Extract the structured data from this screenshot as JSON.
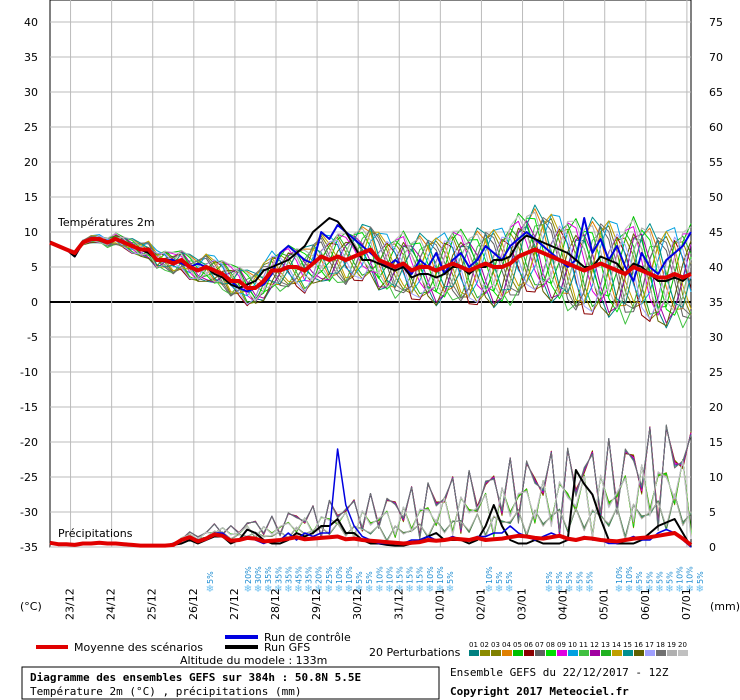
{
  "chart_data": {
    "type": "line",
    "title": "Diagramme des ensembles GEFS sur 384h : 50.8N 5.5E",
    "subtitle": "Température 2m (°C) , précipitations (mm)",
    "left_unit": "(°C)",
    "right_unit": "(mm)",
    "temp_label": "Températures 2m",
    "precip_label": "Précipitations",
    "left_axis": {
      "ticks": [
        "40",
        "35",
        "30",
        "25",
        "20",
        "15",
        "10",
        "5",
        "0",
        "-5",
        "-10",
        "-15",
        "-20",
        "-25",
        "-30",
        "-35"
      ],
      "ylim": [
        -35,
        40
      ]
    },
    "right_axis": {
      "ticks": [
        "75",
        "70",
        "65",
        "60",
        "55",
        "50",
        "45",
        "40",
        "35",
        "30",
        "25",
        "20",
        "15",
        "10",
        "5",
        "0"
      ]
    },
    "dates": [
      "23/12",
      "24/12",
      "25/12",
      "26/12",
      "27/12",
      "28/12",
      "29/12",
      "30/12",
      "31/12",
      "01/01",
      "02/01",
      "03/01",
      "04/01",
      "05/01",
      "06/01",
      "07/01"
    ],
    "snow_labels": [
      "5%",
      "20%",
      "30%",
      "35%",
      "35%",
      "35%",
      "45%",
      "35%",
      "20%",
      "25%",
      "10%",
      "10%",
      "5%",
      "5%",
      "10%",
      "10%",
      "15%",
      "15%",
      "15%",
      "10%",
      "10%",
      "5%",
      "10%",
      "5%",
      "5%",
      "5%",
      "5%",
      "5%",
      "5%",
      "5%",
      "10%",
      "10%",
      "5%",
      "5%",
      "5%",
      "5%",
      "10%",
      "10%",
      "5%"
    ],
    "temperature_series": [
      {
        "name": "Moyenne des scénarios",
        "color": "#e00000",
        "values": [
          8.5,
          8,
          7.5,
          7,
          8.5,
          9,
          9,
          8.5,
          9,
          8.5,
          8,
          7.5,
          7.5,
          6,
          6,
          5.5,
          6,
          5,
          4.5,
          5,
          4.5,
          4,
          3,
          3,
          2,
          2,
          3,
          4.5,
          4.5,
          5,
          5,
          4.5,
          5.5,
          6.5,
          6,
          6.5,
          6,
          6.5,
          7,
          7.5,
          6,
          5.5,
          5,
          5.5,
          4.5,
          5,
          5,
          4.5,
          5,
          5.5,
          5,
          4.5,
          5,
          5.5,
          5,
          5,
          5.5,
          6.5,
          7,
          7.5,
          7,
          6.5,
          6,
          5.5,
          5,
          4.5,
          5,
          5.5,
          5,
          4.5,
          4,
          5,
          4.5,
          4,
          3.5,
          3.5,
          4,
          3.5,
          4
        ]
      },
      {
        "name": "Run de contrôle",
        "color": "#0000e0",
        "values": [
          8.5,
          8,
          7.5,
          6.5,
          8.5,
          9,
          9,
          8.5,
          9,
          8.5,
          8,
          7.5,
          7,
          6,
          6,
          6,
          5.5,
          5,
          5.5,
          5,
          4.5,
          4,
          3,
          2,
          1.5,
          2,
          2.5,
          4,
          7,
          8,
          7,
          6,
          5.5,
          10,
          9,
          11,
          10,
          9,
          8,
          7,
          6,
          5,
          6,
          5,
          4,
          6,
          5,
          7,
          4,
          6,
          7,
          5,
          6,
          8,
          7,
          6,
          8,
          9,
          10,
          9,
          8,
          7,
          6,
          5,
          6,
          12,
          7,
          9,
          6,
          8,
          5,
          3,
          7,
          5,
          4,
          6,
          7,
          8,
          10
        ]
      },
      {
        "name": "Run GFS",
        "color": "#000000",
        "values": [
          8.5,
          8,
          7.5,
          6.5,
          8.5,
          9,
          9,
          8.5,
          9,
          8.5,
          8,
          7.5,
          7,
          6,
          6,
          5.5,
          6,
          5,
          4.5,
          5,
          4,
          3.5,
          2.5,
          2,
          2.5,
          3,
          4.5,
          5,
          5.5,
          6,
          7,
          8,
          10,
          11,
          12,
          11.5,
          10,
          8,
          6,
          6,
          5.5,
          5,
          4.5,
          5,
          3.5,
          4,
          4,
          3.5,
          4,
          5,
          5,
          4,
          5,
          5,
          6,
          6,
          6.5,
          8.5,
          9.5,
          9,
          8.5,
          8,
          7.5,
          7,
          6,
          5,
          5,
          6.5,
          6,
          5.5,
          4,
          5.5,
          5,
          4,
          3,
          3,
          3.5,
          3,
          4
        ]
      }
    ],
    "precip_series": [
      {
        "name": "Moyenne des scénarios",
        "color": "#e00000",
        "values": [
          0.6,
          0.4,
          0.4,
          0.3,
          0.5,
          0.5,
          0.6,
          0.5,
          0.5,
          0.4,
          0.3,
          0.2,
          0.2,
          0.2,
          0.2,
          0.3,
          1,
          1.4,
          0.8,
          1.2,
          1.8,
          1.6,
          0.9,
          1,
          1.3,
          1.2,
          0.8,
          0.9,
          1,
          1.2,
          1.4,
          1.1,
          1.2,
          1.3,
          1.4,
          1.5,
          1.1,
          1.2,
          1,
          0.9,
          0.8,
          0.7,
          0.6,
          0.5,
          0.6,
          0.7,
          1,
          0.9,
          1,
          1.2,
          1.1,
          1,
          1.3,
          1,
          1.1,
          1.2,
          1.4,
          1.6,
          1.5,
          1.3,
          1.2,
          1.4,
          1.6,
          1.2,
          1,
          1.3,
          1.2,
          1,
          0.9,
          0.8,
          1,
          1.2,
          1.3,
          1.4,
          1.6,
          1.8,
          2,
          1.2,
          0.3
        ]
      },
      {
        "name": "Run GFS",
        "color": "#000000",
        "values": [
          0.5,
          0.5,
          0.4,
          0.3,
          0.5,
          0.5,
          0.5,
          0.5,
          0.5,
          0.4,
          0.3,
          0.2,
          0.2,
          0.2,
          0.2,
          0.3,
          0.5,
          1,
          0.5,
          1,
          1.5,
          1.5,
          0.5,
          1,
          2.5,
          2,
          1,
          0.5,
          0.5,
          1,
          2,
          1.5,
          2,
          3,
          3,
          4,
          2,
          2,
          1,
          0.5,
          0.5,
          0.3,
          0.2,
          0.2,
          0.5,
          1,
          1.5,
          2,
          1,
          1,
          1,
          0.5,
          1,
          3,
          6,
          3,
          1,
          0.5,
          0.5,
          1,
          0.5,
          0.5,
          0.5,
          1,
          11,
          9,
          7.5,
          4,
          1,
          0.5,
          0.5,
          0.5,
          1,
          2,
          3,
          3.5,
          4,
          2,
          0
        ]
      },
      {
        "name": "Run de contrôle",
        "color": "#0000e0",
        "values": [
          0.5,
          0.5,
          0.4,
          0.3,
          0.5,
          0.5,
          0.5,
          0.5,
          0.5,
          0.4,
          0.3,
          0.2,
          0.2,
          0.2,
          0.2,
          0.3,
          1,
          1.5,
          1,
          1,
          2,
          2,
          1,
          1,
          1.5,
          1,
          0.5,
          1,
          1,
          2,
          1,
          2,
          1.5,
          2,
          2,
          14,
          6,
          3,
          1.5,
          1,
          0.5,
          0.5,
          0.5,
          0.5,
          1,
          1,
          1.5,
          1,
          1,
          1.5,
          1,
          1,
          1.5,
          1.5,
          2,
          2,
          3,
          2,
          1.5,
          1,
          1.5,
          2,
          1.5,
          1,
          1,
          1.5,
          1,
          1,
          0.5,
          0.5,
          1,
          1.5,
          1,
          1,
          2,
          2.5,
          2,
          1,
          0
        ]
      }
    ],
    "legend": {
      "mean": "Moyenne des scénarios",
      "control": "Run de contrôle",
      "gfs": "Run GFS",
      "perturbations": "20 Perturbations",
      "pert_numbers": [
        "01",
        "02",
        "03",
        "04",
        "05",
        "06",
        "07",
        "08",
        "09",
        "10",
        "11",
        "12",
        "13",
        "14",
        "15",
        "16",
        "17",
        "18",
        "19",
        "20"
      ],
      "pert_colors": [
        "#008080",
        "#8b8b00",
        "#808000",
        "#e08000",
        "#00c000",
        "#8b0000",
        "#606060",
        "#00e000",
        "#e000e0",
        "#00a0e0",
        "#40c040",
        "#a000a0",
        "#20b020",
        "#c0a000",
        "#009090",
        "#606000",
        "#a0a0ff",
        "#707070",
        "#b0b0b0",
        "#c0c0c0"
      ],
      "altitude": "Altitude du modele : 133m"
    },
    "footer": {
      "ensemble": "Ensemble GEFS du 22/12/2017 - 12Z",
      "copyright": "Copyright 2017 Meteociel.fr"
    }
  }
}
